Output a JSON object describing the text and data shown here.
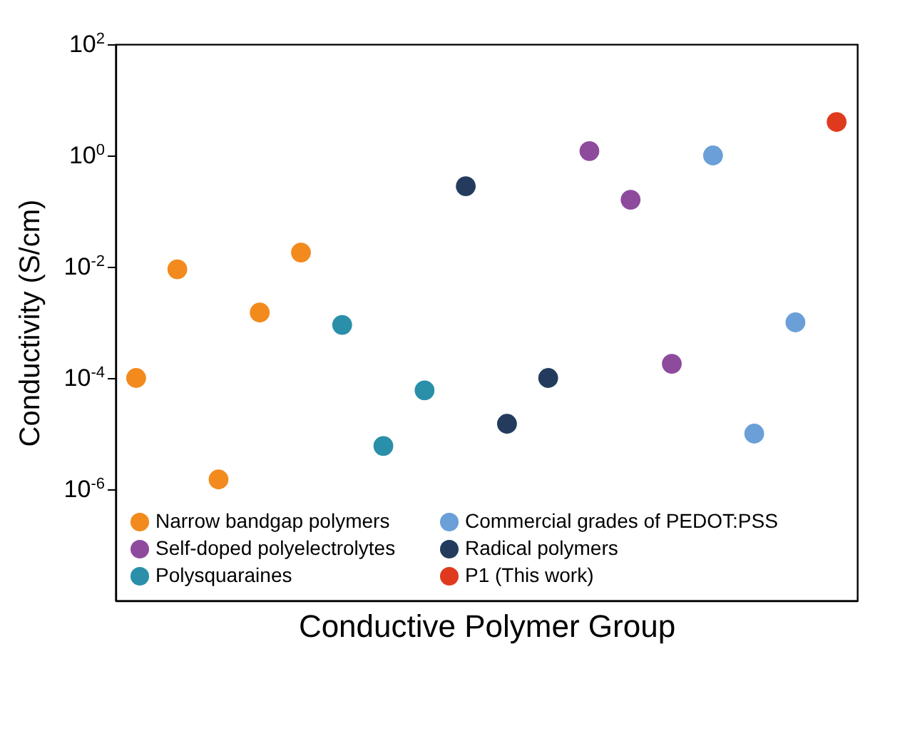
{
  "chart_data": {
    "type": "scatter",
    "xlabel": "Conductive Polymer Group",
    "ylabel": "Conductivity (S/cm)",
    "categories": [
      null,
      null,
      null,
      null,
      null,
      null,
      null,
      null,
      null,
      null,
      null,
      null,
      null,
      null,
      null,
      null,
      null,
      null
    ],
    "series": [
      {
        "name": "Narrow bandgap polymers",
        "color": "#f28a1e",
        "values": [
          0.0001,
          0.009,
          1.5e-06,
          0.0015,
          0.018,
          null,
          null,
          null,
          null,
          null,
          null,
          null,
          null,
          null,
          null,
          null,
          null,
          null
        ]
      },
      {
        "name": "Polysquaraines",
        "color": "#2a8fa8",
        "values": [
          null,
          null,
          null,
          null,
          null,
          0.0009,
          6e-06,
          6e-05,
          null,
          null,
          null,
          null,
          null,
          null,
          null,
          null,
          null,
          null
        ]
      },
      {
        "name": "Radical polymers",
        "color": "#243b5e",
        "values": [
          null,
          null,
          null,
          null,
          null,
          null,
          null,
          null,
          0.28,
          1.5e-05,
          0.0001,
          null,
          null,
          null,
          null,
          null,
          null,
          null
        ]
      },
      {
        "name": "Self-doped polyelectrolytes",
        "color": "#8e4b9e",
        "values": [
          null,
          null,
          null,
          null,
          null,
          null,
          null,
          null,
          null,
          null,
          null,
          1.2,
          0.16,
          0.00018,
          null,
          null,
          null,
          null
        ]
      },
      {
        "name": "Commercial grades of PEDOT:PSS",
        "color": "#6a9fd8",
        "values": [
          null,
          null,
          null,
          null,
          null,
          null,
          null,
          null,
          null,
          null,
          null,
          null,
          null,
          null,
          1.0,
          1e-05,
          0.001,
          null
        ]
      },
      {
        "name": "P1 (This work)",
        "color": "#e03a1e",
        "values": [
          null,
          null,
          null,
          null,
          null,
          null,
          null,
          null,
          null,
          null,
          null,
          null,
          null,
          null,
          null,
          null,
          null,
          4
        ]
      }
    ],
    "log": "y",
    "ylim": [
      1e-08,
      100
    ],
    "yticks": [
      {
        "value": 1e-06,
        "label": "10$^{-6}$"
      },
      {
        "value": 0.0001,
        "label": "10$^{-4}$"
      },
      {
        "value": 0.01,
        "label": "10$^{-2}$"
      },
      {
        "value": 1,
        "label": "10$^{0}$"
      },
      {
        "value": 100,
        "label": "10$^{2}$"
      }
    ],
    "tick_labels": "y",
    "grid": false,
    "legend": "bottom",
    "marker": "circle"
  }
}
